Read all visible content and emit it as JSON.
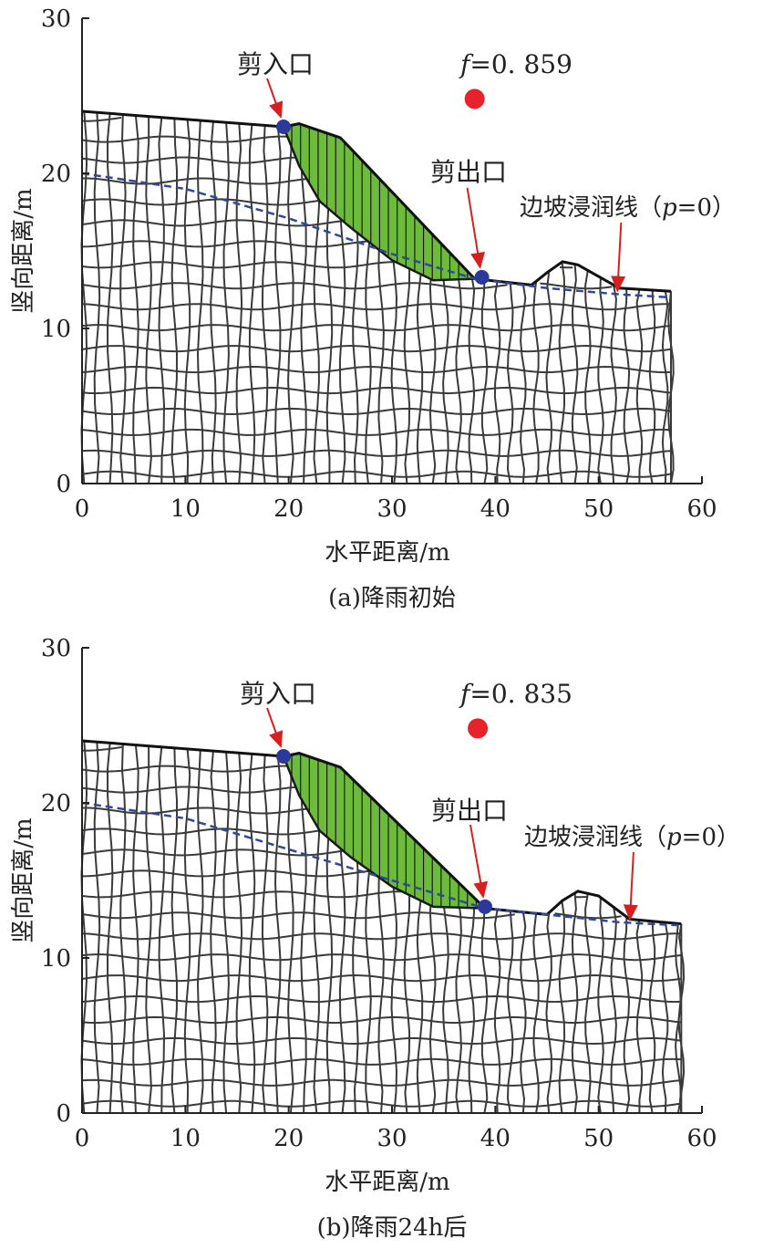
{
  "chart_data": [
    {
      "type": "scatter",
      "caption": "(a)降雨初始",
      "xlabel": "水平距离/m",
      "ylabel": "竖向距离/m",
      "xlim": [
        0,
        60
      ],
      "ylim": [
        0,
        30
      ],
      "xticks": [
        0,
        10,
        20,
        30,
        40,
        50,
        60
      ],
      "yticks": [
        0,
        10,
        20,
        30
      ],
      "ground_surface": [
        [
          0,
          24
        ],
        [
          19.5,
          23
        ],
        [
          21,
          23.2
        ],
        [
          25,
          22.3
        ],
        [
          38,
          13.2
        ],
        [
          43.5,
          12.8
        ],
        [
          45,
          13.6
        ],
        [
          46.5,
          14.3
        ],
        [
          48,
          14.1
        ],
        [
          52,
          12.6
        ],
        [
          57,
          12.4
        ],
        [
          57,
          0
        ],
        [
          0,
          0
        ]
      ],
      "slip_surface": [
        [
          19.5,
          23
        ],
        [
          21,
          20.5
        ],
        [
          23,
          18.2
        ],
        [
          26,
          16.5
        ],
        [
          30,
          14.4
        ],
        [
          34,
          13.1
        ],
        [
          38,
          13.2
        ]
      ],
      "phreatic_line": [
        [
          0,
          20
        ],
        [
          10,
          19
        ],
        [
          20,
          17.1
        ],
        [
          30,
          14.8
        ],
        [
          38,
          13.2
        ],
        [
          45,
          12.6
        ],
        [
          52,
          12.2
        ],
        [
          57,
          12
        ]
      ],
      "points": [
        {
          "name": "剪入口",
          "x": 19.5,
          "y": 23
        },
        {
          "name": "剪出口",
          "x": 38.7,
          "y": 13.3
        },
        {
          "name": "safety_factor_marker",
          "x": 38,
          "y": 24.8
        }
      ],
      "labels": {
        "entry": "剪入口",
        "exit": "剪出口",
        "phreatic": "边坡浸润线（p=0）",
        "phreatic_main": "边坡浸润线（",
        "phreatic_p": "p",
        "phreatic_tail": "=0）",
        "f_symbol": "f",
        "f_value": "=0. 859"
      },
      "colors": {
        "slide_mass": "#6dbb3a",
        "marker": "#2b3a9a",
        "safety_dot": "#e8222a",
        "phreatic": "#2c4a9c",
        "arrow": "#d62020",
        "mesh": "#3a3a3a"
      },
      "grid": false
    },
    {
      "type": "scatter",
      "caption": "(b)降雨24h后",
      "xlabel": "水平距离/m",
      "ylabel": "竖向距离/m",
      "xlim": [
        0,
        60
      ],
      "ylim": [
        0,
        30
      ],
      "xticks": [
        0,
        10,
        20,
        30,
        40,
        50,
        60
      ],
      "yticks": [
        0,
        10,
        20,
        30
      ],
      "ground_surface": [
        [
          0,
          24
        ],
        [
          19.5,
          23
        ],
        [
          21,
          23.2
        ],
        [
          25,
          22.3
        ],
        [
          39,
          13.2
        ],
        [
          45,
          12.8
        ],
        [
          46.5,
          13.7
        ],
        [
          48,
          14.3
        ],
        [
          50,
          14
        ],
        [
          53,
          12.5
        ],
        [
          58,
          12.2
        ],
        [
          58,
          0
        ],
        [
          0,
          0
        ]
      ],
      "slip_surface": [
        [
          19.5,
          23
        ],
        [
          21,
          20.5
        ],
        [
          23,
          18.2
        ],
        [
          26,
          16.5
        ],
        [
          30,
          14.6
        ],
        [
          34,
          13.3
        ],
        [
          39,
          13.2
        ]
      ],
      "phreatic_line": [
        [
          0,
          20
        ],
        [
          10,
          19
        ],
        [
          20,
          17
        ],
        [
          30,
          15
        ],
        [
          39,
          13.2
        ],
        [
          45,
          12.8
        ],
        [
          52,
          12.3
        ],
        [
          58,
          12.1
        ]
      ],
      "points": [
        {
          "name": "剪入口",
          "x": 19.5,
          "y": 23
        },
        {
          "name": "剪出口",
          "x": 39,
          "y": 13.3
        },
        {
          "name": "safety_factor_marker",
          "x": 38.3,
          "y": 24.8
        }
      ],
      "labels": {
        "entry": "剪入口",
        "exit": "剪出口",
        "phreatic": "边坡浸润线（p=0）",
        "phreatic_main": "边坡浸润线（",
        "phreatic_p": "p",
        "phreatic_tail": "=0）",
        "f_symbol": "f",
        "f_value": "=0. 835"
      },
      "colors": {
        "slide_mass": "#6dbb3a",
        "marker": "#2b3a9a",
        "safety_dot": "#e8222a",
        "phreatic": "#2c4a9c",
        "arrow": "#d62020",
        "mesh": "#3a3a3a"
      },
      "grid": false
    }
  ]
}
